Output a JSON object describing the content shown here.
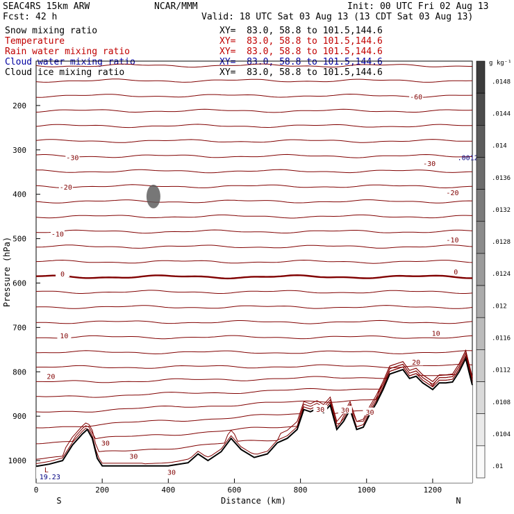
{
  "header": {
    "model": "SEAC4RS 15km ARW",
    "fcst_label": "Fcst:",
    "fcst_value": "42 h",
    "center": "NCAR/MMM",
    "init": "Init: 00 UTC Fri 02 Aug 13",
    "valid": "Valid: 18 UTC Sat 03 Aug 13 (13 CDT Sat 03 Aug 13)"
  },
  "fields": [
    {
      "name": "Snow mixing ratio",
      "xy": "XY=  83.0, 58.8 to 101.5,144.6",
      "color": "#000000"
    },
    {
      "name": "Temperature",
      "xy": "XY=  83.0, 58.8 to 101.5,144.6",
      "color": "#c00000"
    },
    {
      "name": "Rain water mixing ratio",
      "xy": "XY=  83.0, 58.8 to 101.5,144.6",
      "color": "#c00000"
    },
    {
      "name": "Cloud water mixing ratio",
      "xy": "XY=  83.0, 58.8 to 101.5,144.6",
      "color": "#0000a0"
    },
    {
      "name": "Cloud ice mixing ratio",
      "xy": "XY=  83.0, 58.8 to 101.5,144.6",
      "color": "#000000"
    }
  ],
  "chart_data": {
    "type": "contour-cross-section",
    "xlabel": "Distance (km)",
    "ylabel": "Pressure (hPa)",
    "xlim": [
      0,
      1320
    ],
    "ylim": [
      100,
      1050
    ],
    "x_ticks": [
      0,
      200,
      400,
      600,
      800,
      1000,
      1200
    ],
    "y_ticks": [
      200,
      300,
      400,
      500,
      600,
      700,
      800,
      900,
      1000
    ],
    "endpoint_left": "S",
    "endpoint_right": "N",
    "temperature_labels": [
      {
        "text": "-60",
        "x": 1150,
        "p": 180
      },
      {
        "text": "-30",
        "x": 110,
        "p": 317
      },
      {
        "text": "-30",
        "x": 1190,
        "p": 330
      },
      {
        "text": "-20",
        "x": 90,
        "p": 383
      },
      {
        "text": "-20",
        "x": 1260,
        "p": 396
      },
      {
        "text": "-10",
        "x": 65,
        "p": 489
      },
      {
        "text": "-10",
        "x": 1260,
        "p": 502
      },
      {
        "text": "0",
        "x": 80,
        "p": 579
      },
      {
        "text": "0",
        "x": 1270,
        "p": 574
      },
      {
        "text": "10",
        "x": 85,
        "p": 718
      },
      {
        "text": "10",
        "x": 1210,
        "p": 713
      },
      {
        "text": "20",
        "x": 45,
        "p": 810
      },
      {
        "text": "20",
        "x": 1150,
        "p": 778
      },
      {
        "text": "30",
        "x": 210,
        "p": 960
      },
      {
        "text": "30",
        "x": 295,
        "p": 990
      },
      {
        "text": "30",
        "x": 410,
        "p": 1026
      },
      {
        "text": "30",
        "x": 860,
        "p": 884
      },
      {
        "text": "30",
        "x": 935,
        "p": 886
      },
      {
        "text": "30",
        "x": 1010,
        "p": 890
      }
    ],
    "small_labels": [
      {
        "text": "L",
        "x": 25,
        "p": 1020
      },
      {
        "text": "19.23",
        "x": 10,
        "p": 1036
      },
      {
        "text": ".00126",
        "x": 1275,
        "p": 317
      }
    ],
    "terrain_pressure": {
      "x": [
        0,
        40,
        80,
        110,
        140,
        155,
        170,
        185,
        200,
        260,
        330,
        400,
        460,
        490,
        520,
        560,
        590,
        620,
        660,
        700,
        730,
        760,
        790,
        810,
        830,
        850,
        870,
        890,
        910,
        930,
        950,
        970,
        990,
        1010,
        1030,
        1050,
        1070,
        1090,
        1110,
        1130,
        1150,
        1170,
        1190,
        1200,
        1220,
        1240,
        1260,
        1280,
        1300,
        1310,
        1320
      ],
      "p": [
        1013,
        1008,
        1000,
        965,
        940,
        930,
        950,
        995,
        1012,
        1012,
        1012,
        1012,
        1005,
        985,
        1000,
        980,
        950,
        975,
        993,
        985,
        960,
        950,
        930,
        885,
        890,
        883,
        892,
        875,
        930,
        912,
        885,
        930,
        925,
        895,
        870,
        840,
        805,
        800,
        795,
        815,
        810,
        825,
        835,
        840,
        825,
        825,
        823,
        800,
        770,
        800,
        830
      ]
    },
    "colorbar": {
      "unit": "g kg⁻¹",
      "labels": [
        ".0148",
        ".0144",
        ".014",
        ".0136",
        ".0132",
        ".0128",
        ".0124",
        ".012",
        ".0116",
        ".0112",
        ".0108",
        ".0104",
        ".01"
      ]
    },
    "grid": false
  }
}
